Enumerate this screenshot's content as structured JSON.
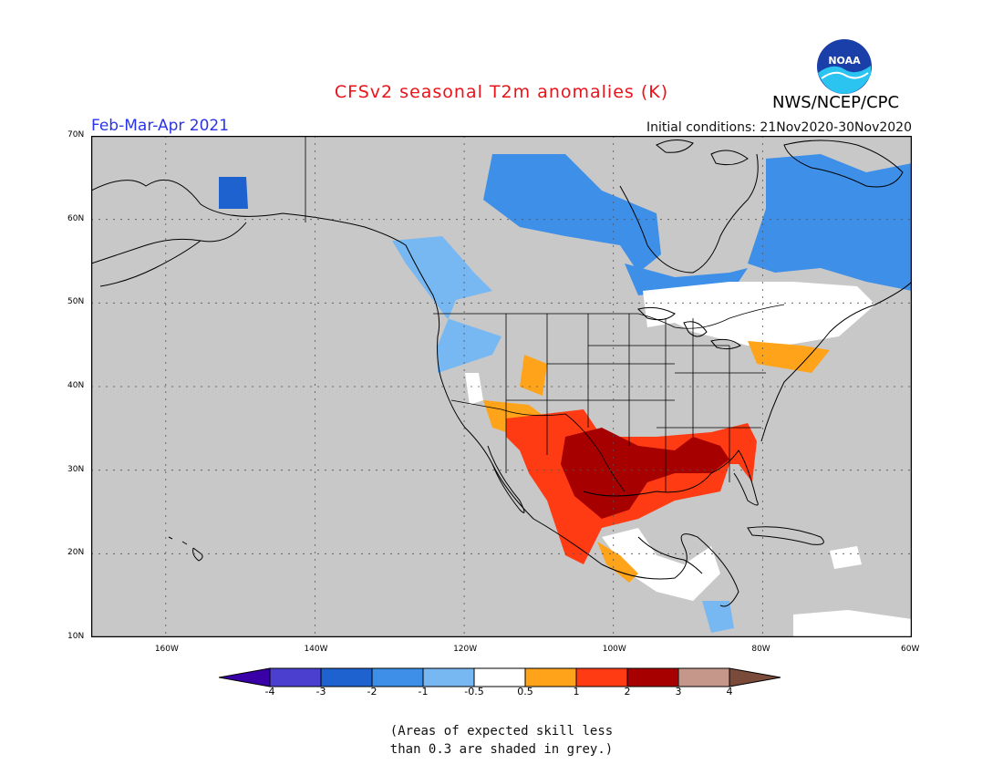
{
  "header": {
    "title": "CFSv2 seasonal T2m anomalies (K)",
    "period": "Feb-Mar-Apr 2021",
    "initial_conditions": "Initial conditions: 21Nov2020-30Nov2020",
    "agency": "NWS/NCEP/CPC",
    "logo_text": "NOAA"
  },
  "map": {
    "projection": "cylindrical",
    "lon_range": [
      -170,
      -60
    ],
    "lat_range": [
      10,
      70
    ],
    "lat_ticks": [
      "10N",
      "20N",
      "30N",
      "40N",
      "50N",
      "60N",
      "70N"
    ],
    "lon_ticks": [
      "160W",
      "140W",
      "120W",
      "100W",
      "80W",
      "60W"
    ],
    "background": "#c8c8c8",
    "gridlines": true
  },
  "colorbar": {
    "labels": [
      "-4",
      "-3",
      "-2",
      "-1",
      "-0.5",
      "0.5",
      "1",
      "2",
      "3",
      "4"
    ],
    "colors": [
      "#3a00a8",
      "#4a3fcf",
      "#1e62d0",
      "#3d8fe8",
      "#78b8f2",
      "#ffffff",
      "#ffa31a",
      "#ff3b14",
      "#a60000",
      "#c4978a",
      "#7a4a3a"
    ]
  },
  "note": {
    "line1": "(Areas of expected skill less",
    "line2": "than 0.3 are shaded in grey.)"
  }
}
